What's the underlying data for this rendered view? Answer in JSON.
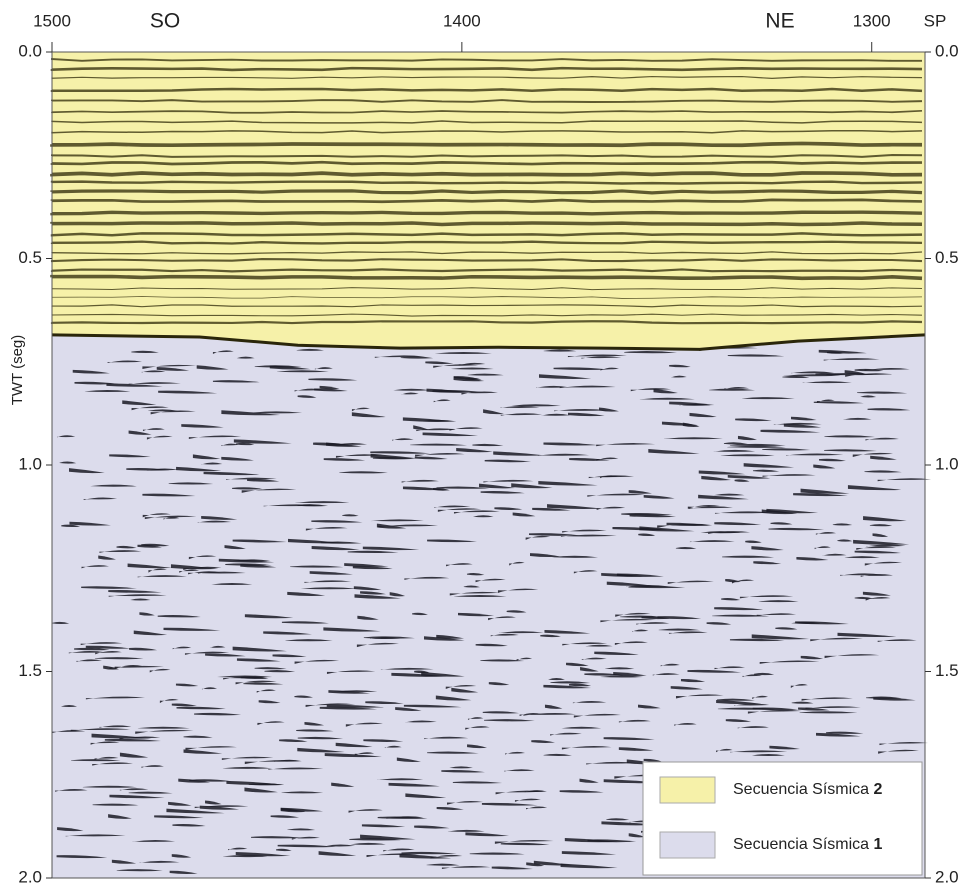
{
  "chart_data": {
    "type": "area",
    "y_label": "TWT (seg)",
    "x_axis_label": "SP",
    "annotations": [
      "SO",
      "NE"
    ],
    "x": [
      1500,
      1464,
      1440,
      1415,
      1391,
      1366,
      1342,
      1318,
      1287
    ],
    "xlim": [
      1500,
      1287
    ],
    "xticks": [
      1500,
      1400,
      1300
    ],
    "ylim": [
      2,
      0
    ],
    "yticks": [
      {
        "value": 0,
        "label": "0.0"
      },
      {
        "value": 0.5,
        "label": "0.5"
      },
      {
        "value": 1,
        "label": "1.0"
      },
      {
        "value": 1.5,
        "label": "1.5"
      },
      {
        "value": 2,
        "label": "2.0"
      }
    ],
    "series": [
      {
        "name": "Secuencia Sísmica 2",
        "color": "#f6f1a9"
      },
      {
        "name": "Secuencia Sísmica 1",
        "color": "#dcdcec",
        "values": [
          0.685,
          0.69,
          0.71,
          0.717,
          0.715,
          0.717,
          0.72,
          0.7,
          0.685
        ]
      }
    ]
  }
}
